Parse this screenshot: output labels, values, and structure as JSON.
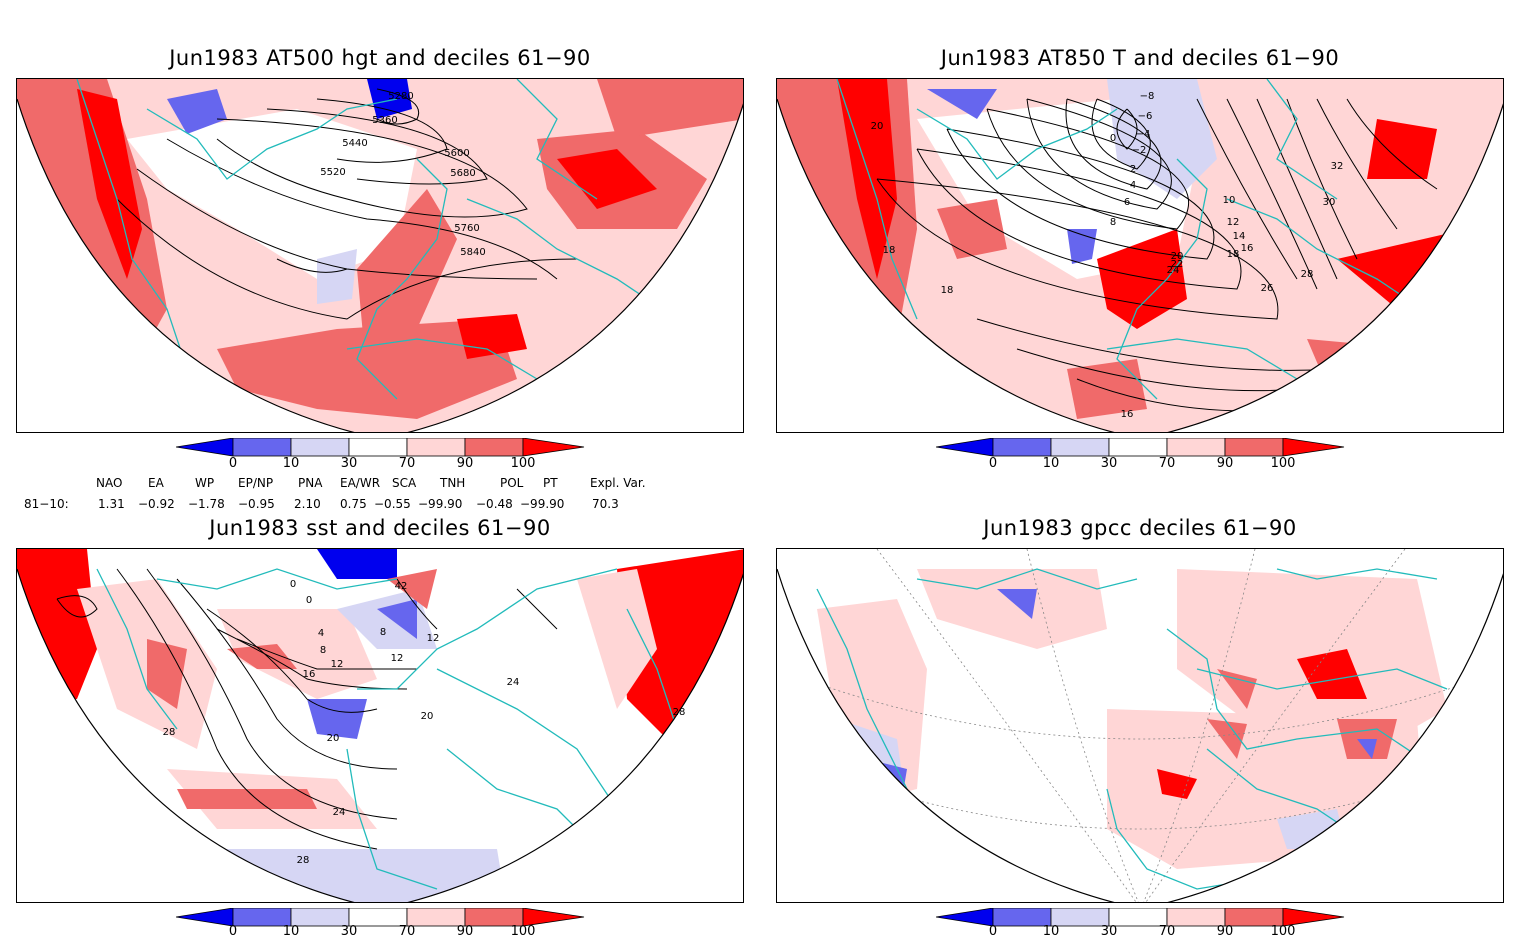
{
  "panels": [
    {
      "title": "Jun1983 AT500 hgt and deciles 61−90",
      "contour_labels": [
        "5280",
        "5360",
        "5440",
        "5520",
        "5600",
        "5680",
        "5760",
        "5840"
      ]
    },
    {
      "title": "Jun1983 AT850 T and deciles 61−90",
      "contour_labels": [
        "−8",
        "−6",
        "−4",
        "−2",
        "0",
        "2",
        "4",
        "6",
        "8",
        "10",
        "12",
        "14",
        "16",
        "18",
        "20",
        "22",
        "24",
        "26",
        "28",
        "30",
        "32",
        "18",
        "18",
        "20",
        "16"
      ]
    },
    {
      "title": "Jun1983 sst and deciles 61−90",
      "contour_labels": [
        "0",
        "0",
        "4",
        "8",
        "8",
        "12",
        "12",
        "16",
        "20",
        "20",
        "24",
        "24",
        "28",
        "28",
        "28",
        "42",
        "12"
      ]
    },
    {
      "title": "Jun1983 gpcc deciles 61−90",
      "contour_labels": []
    }
  ],
  "colorbar": {
    "labels": [
      "0",
      "10",
      "30",
      "70",
      "90",
      "100"
    ],
    "colors": [
      "#0000ee",
      "#6666ee",
      "#d6d6f4",
      "#ffffff",
      "#ffd6d6",
      "#f06a6a",
      "#ff0000"
    ]
  },
  "teleconnections": {
    "headers": [
      "NAO",
      "EA",
      "WP",
      "EP/NP",
      "PNA",
      "EA/WR",
      "SCA",
      "TNH",
      "POL",
      "PT",
      "Expl. Var."
    ],
    "row_label": "81−10:",
    "values": [
      "1.31",
      "−0.92",
      "−1.78",
      "−0.95",
      "2.10",
      "0.75",
      "−0.55",
      "−99.90",
      "−0.48",
      "−99.90",
      "70.3"
    ]
  },
  "colors": {
    "coast": "#22bbbb",
    "strong_pos": "#ff0000",
    "pos": "#f06a6a",
    "weak_pos": "#ffd6d6",
    "weak_neg": "#d6d6f4",
    "neg": "#6666ee",
    "strong_neg": "#0000ee"
  }
}
